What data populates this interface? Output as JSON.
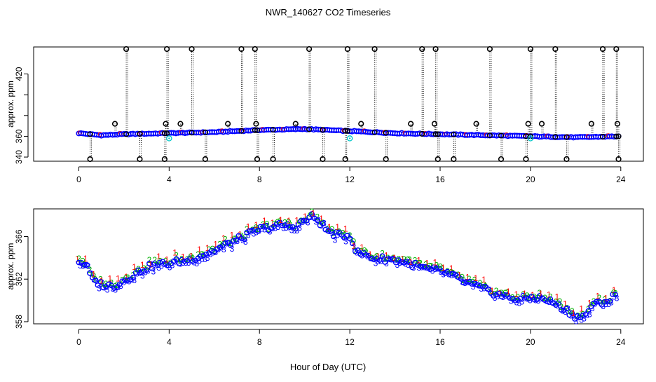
{
  "page": {
    "title": "NWR_140627  CO2 Timeseries",
    "xlabel": "Hour of Day (UTC)"
  },
  "colors": {
    "primary_marker": "#0000ff",
    "secondary_marker": "#ff0000",
    "tertiary_marker": "#00b000",
    "flag_marker": "#000000",
    "cyan_marker": "#00c8c8",
    "orange_marker": "#ff8c00"
  },
  "chart_data": [
    {
      "type": "scatter",
      "id": "top",
      "ylabel": "approx. ppm",
      "xlim": [
        -2,
        25
      ],
      "ylim": [
        336,
        446
      ],
      "xticks": [
        0,
        4,
        8,
        12,
        16,
        20,
        24
      ],
      "yticks": [
        340,
        360,
        380,
        400,
        420
      ],
      "ytick_labels": [
        "340",
        "360",
        "",
        "",
        "420"
      ],
      "baseline_knots": {
        "x": [
          0,
          1,
          2,
          4,
          6,
          8,
          10,
          12,
          14,
          16,
          18,
          20,
          22,
          24
        ],
        "y": [
          363,
          361,
          362,
          363,
          364,
          366,
          367,
          365,
          363,
          362,
          361,
          360,
          359,
          360
        ]
      },
      "high_flags": [
        2.1,
        3.9,
        5.0,
        7.2,
        7.8,
        10.2,
        11.9,
        13.1,
        15.2,
        15.8,
        18.2,
        20.0,
        21.1,
        23.2,
        23.8
      ],
      "mid_flags": [
        1.6,
        3.85,
        4.5,
        6.6,
        7.85,
        9.6,
        12.5,
        14.7,
        15.75,
        17.6,
        19.9,
        20.5,
        22.7,
        23.85
      ],
      "low_flags": [
        0.5,
        2.7,
        3.8,
        5.6,
        7.9,
        8.6,
        10.8,
        11.8,
        13.6,
        15.9,
        16.6,
        18.7,
        19.8,
        21.6,
        23.9
      ],
      "cyan_points": [
        {
          "x": 4.0,
          "y": 358
        },
        {
          "x": 12.0,
          "y": 358
        },
        {
          "x": 20.0,
          "y": 358
        }
      ],
      "high_value": 444,
      "mid_value": 372,
      "low_value": 338
    },
    {
      "type": "scatter",
      "id": "bottom",
      "ylabel": "approx. ppm",
      "xlim": [
        -2,
        25
      ],
      "ylim": [
        357.8,
        368.6
      ],
      "xticks": [
        0,
        4,
        8,
        12,
        16,
        20,
        24
      ],
      "yticks": [
        358,
        362,
        366
      ],
      "series_labels": [
        "1",
        "2",
        "3"
      ],
      "knots": {
        "x": [
          0.0,
          0.3,
          0.6,
          1.0,
          1.5,
          2.0,
          2.5,
          3.0,
          3.5,
          4.0,
          4.5,
          5.0,
          5.5,
          6.0,
          6.5,
          7.0,
          7.5,
          8.0,
          8.5,
          9.0,
          9.5,
          10.0,
          10.3,
          10.6,
          11.0,
          11.5,
          12.0,
          12.3,
          12.7,
          13.0,
          13.5,
          14.0,
          14.5,
          15.0,
          15.5,
          16.0,
          16.5,
          17.0,
          17.5,
          18.0,
          18.5,
          19.0,
          19.5,
          20.0,
          20.5,
          21.0,
          21.5,
          22.0,
          22.3,
          22.6,
          23.0,
          23.5,
          23.8
        ],
        "y": [
          363.8,
          363.5,
          362.0,
          361.6,
          361.4,
          362.0,
          362.6,
          363.2,
          363.5,
          363.6,
          363.8,
          364.0,
          364.4,
          364.8,
          365.3,
          365.8,
          366.3,
          366.8,
          367.0,
          367.2,
          367.0,
          367.6,
          368.0,
          367.6,
          366.6,
          366.2,
          366.2,
          364.6,
          364.4,
          364.1,
          364.0,
          363.9,
          363.7,
          363.3,
          363.0,
          362.9,
          362.5,
          361.9,
          361.5,
          361.1,
          360.7,
          360.4,
          360.2,
          360.4,
          360.3,
          359.9,
          359.3,
          358.6,
          358.5,
          359.3,
          359.9,
          360.1,
          360.8
        ]
      }
    }
  ]
}
